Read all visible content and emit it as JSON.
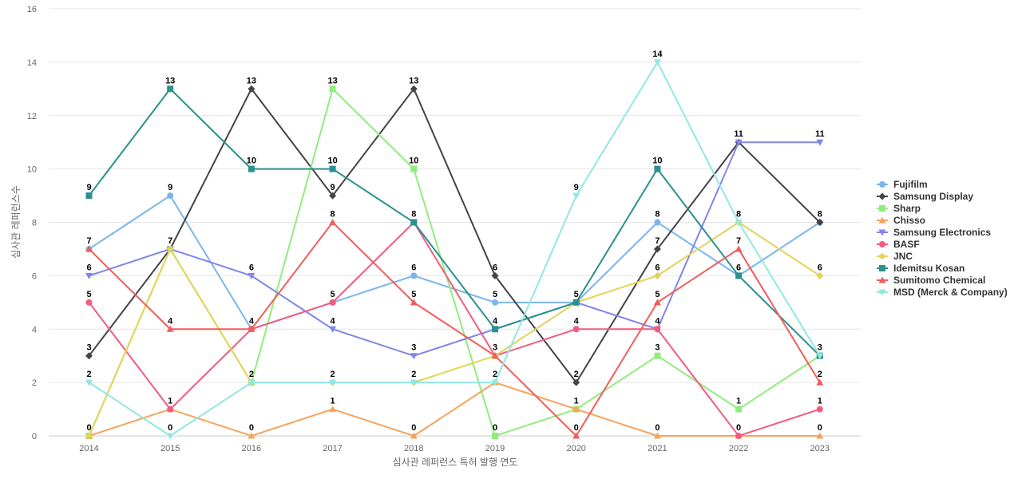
{
  "chart_data": {
    "type": "line",
    "title": "",
    "xlabel": "심사관 레퍼런스 특허 발행 연도",
    "ylabel": "심사관 레퍼런스수",
    "categories": [
      "2014",
      "2015",
      "2016",
      "2017",
      "2018",
      "2019",
      "2020",
      "2021",
      "2022",
      "2023"
    ],
    "ylim": [
      0,
      16
    ],
    "yticks": [
      0,
      2,
      4,
      6,
      8,
      10,
      12,
      14,
      16
    ],
    "grid": true,
    "legend_position": "right",
    "series": [
      {
        "name": "Fujifilm",
        "color": "#7cb5ec",
        "marker": "circle",
        "values": [
          7,
          9,
          4,
          5,
          6,
          5,
          5,
          8,
          6,
          8
        ]
      },
      {
        "name": "Samsung Display",
        "color": "#434348",
        "marker": "diamond",
        "values": [
          3,
          7,
          13,
          9,
          13,
          6,
          2,
          7,
          11,
          8
        ]
      },
      {
        "name": "Sharp",
        "color": "#90ed7d",
        "marker": "square",
        "values": [
          0,
          7,
          2,
          13,
          10,
          0,
          1,
          3,
          1,
          3
        ]
      },
      {
        "name": "Chisso",
        "color": "#f7a35c",
        "marker": "triangle",
        "values": [
          0,
          1,
          0,
          1,
          0,
          2,
          1,
          0,
          0,
          0
        ]
      },
      {
        "name": "Samsung Electronics",
        "color": "#8085e9",
        "marker": "triangle-down",
        "values": [
          6,
          7,
          6,
          4,
          3,
          4,
          5,
          4,
          11,
          11
        ]
      },
      {
        "name": "BASF",
        "color": "#f15c80",
        "marker": "circle",
        "values": [
          5,
          1,
          4,
          5,
          8,
          3,
          4,
          4,
          0,
          1
        ]
      },
      {
        "name": "JNC",
        "color": "#e4d354",
        "marker": "diamond",
        "values": [
          0,
          7,
          2,
          2,
          2,
          3,
          5,
          6,
          8,
          6
        ]
      },
      {
        "name": "Idemitsu Kosan",
        "color": "#2b908f",
        "marker": "square",
        "values": [
          9,
          13,
          10,
          10,
          8,
          4,
          5,
          10,
          6,
          3
        ]
      },
      {
        "name": "Sumitomo Chemical",
        "color": "#f45b5b",
        "marker": "triangle",
        "values": [
          7,
          4,
          4,
          8,
          5,
          3,
          0,
          5,
          7,
          2
        ]
      },
      {
        "name": "MSD (Merck & Company)",
        "color": "#91e8e1",
        "marker": "triangle-down",
        "values": [
          2,
          0,
          2,
          2,
          2,
          2,
          9,
          14,
          8,
          3
        ]
      }
    ],
    "labels": [
      [
        7,
        9,
        4,
        5,
        6,
        5,
        5,
        8,
        6,
        8
      ],
      [
        3,
        7,
        13,
        9,
        13,
        6,
        2,
        7,
        11,
        8
      ],
      [
        0,
        7,
        2,
        13,
        10,
        0,
        1,
        3,
        1,
        3
      ],
      [
        0,
        1,
        0,
        1,
        0,
        2,
        1,
        0,
        0,
        0
      ],
      [
        6,
        7,
        6,
        4,
        3,
        4,
        5,
        4,
        11,
        11
      ],
      [
        5,
        1,
        4,
        5,
        8,
        3,
        4,
        4,
        0,
        1
      ],
      [
        0,
        7,
        2,
        2,
        2,
        3,
        5,
        6,
        8,
        6
      ],
      [
        9,
        13,
        10,
        10,
        8,
        4,
        5,
        10,
        6,
        3
      ],
      [
        7,
        4,
        4,
        8,
        5,
        3,
        0,
        5,
        7,
        2
      ],
      [
        2,
        0,
        2,
        2,
        2,
        2,
        9,
        14,
        8,
        3
      ]
    ]
  }
}
